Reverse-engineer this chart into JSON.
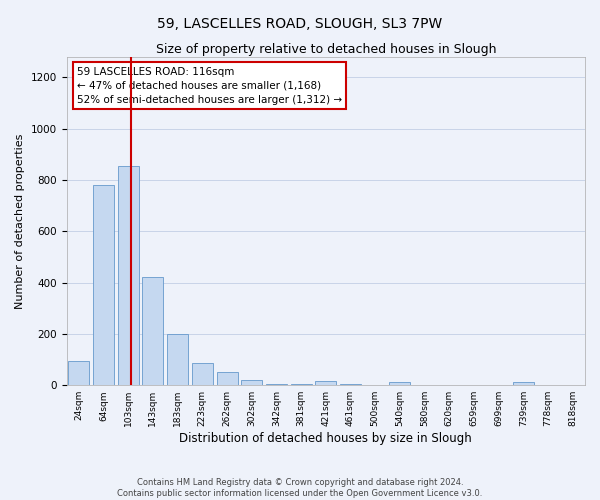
{
  "title": "59, LASCELLES ROAD, SLOUGH, SL3 7PW",
  "subtitle": "Size of property relative to detached houses in Slough",
  "xlabel": "Distribution of detached houses by size in Slough",
  "ylabel": "Number of detached properties",
  "bin_labels": [
    "24sqm",
    "64sqm",
    "103sqm",
    "143sqm",
    "183sqm",
    "223sqm",
    "262sqm",
    "302sqm",
    "342sqm",
    "381sqm",
    "421sqm",
    "461sqm",
    "500sqm",
    "540sqm",
    "580sqm",
    "620sqm",
    "659sqm",
    "699sqm",
    "739sqm",
    "778sqm",
    "818sqm"
  ],
  "bar_values": [
    95,
    780,
    855,
    420,
    200,
    88,
    52,
    20,
    5,
    3,
    15,
    3,
    0,
    13,
    0,
    0,
    0,
    0,
    12,
    0,
    0
  ],
  "bar_color": "#c5d8f0",
  "bar_edgecolor": "#6699cc",
  "vline_pos": 2.13,
  "ylim": [
    0,
    1280
  ],
  "yticks": [
    0,
    200,
    400,
    600,
    800,
    1000,
    1200
  ],
  "annotation_text": "59 LASCELLES ROAD: 116sqm\n← 47% of detached houses are smaller (1,168)\n52% of semi-detached houses are larger (1,312) →",
  "annotation_box_color": "#ffffff",
  "annotation_border_color": "#cc0000",
  "vline_color": "#cc0000",
  "background_color": "#eef2fa",
  "grid_color": "#c8d4e8",
  "footer_text": "Contains HM Land Registry data © Crown copyright and database right 2024.\nContains public sector information licensed under the Open Government Licence v3.0.",
  "title_fontsize": 10,
  "subtitle_fontsize": 9,
  "xlabel_fontsize": 8.5,
  "ylabel_fontsize": 8
}
